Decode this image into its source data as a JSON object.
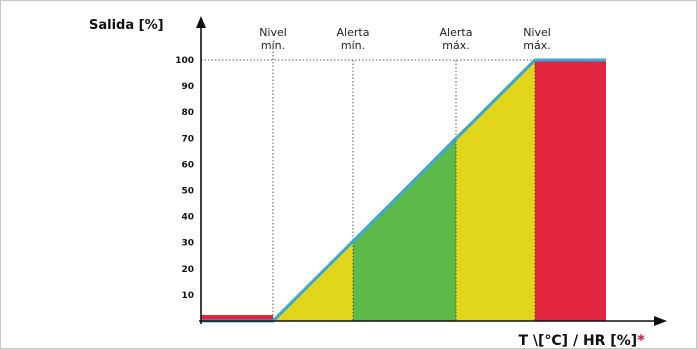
{
  "chart_data": {
    "type": "area",
    "ylabel": "Salida [%]",
    "xlabel": "T \\[°C] / HR [%]",
    "xlabel_mark": "*",
    "yticks": [
      10,
      20,
      30,
      40,
      50,
      60,
      70,
      80,
      90,
      100
    ],
    "ylim": [
      0,
      100
    ],
    "thresholds": [
      {
        "line1": "Nivel",
        "line2": "mín."
      },
      {
        "line1": "Alerta",
        "line2": "mín."
      },
      {
        "line1": "Alerta",
        "line2": "máx."
      },
      {
        "line1": "Nivel",
        "line2": "máx."
      }
    ],
    "zones": [
      {
        "name": "below-min",
        "color": "#e3263f"
      },
      {
        "name": "min-to-alert-min",
        "color": "#e2d61a"
      },
      {
        "name": "alert-range",
        "color": "#5cb94a"
      },
      {
        "name": "alert-max-to-max",
        "color": "#e2d61a"
      },
      {
        "name": "above-max",
        "color": "#e3263f"
      }
    ],
    "line_color": "#3aa7d6",
    "grid": false
  }
}
